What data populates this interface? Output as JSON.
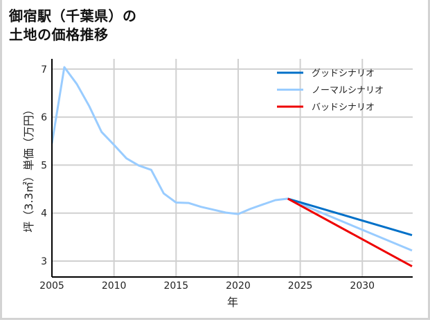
{
  "title_line1": "御宿駅（千葉県）の",
  "title_line2": "土地の価格推移",
  "chart_data": {
    "type": "line",
    "title": "御宿駅（千葉県）の土地の価格推移",
    "xlabel": "年",
    "ylabel": "坪（3.3㎡）単価（万円）",
    "xlim": [
      2005,
      2034
    ],
    "ylim": [
      2.7,
      7.25
    ],
    "xticks": [
      2005,
      2010,
      2015,
      2020,
      2025,
      2030
    ],
    "yticks": [
      3,
      4,
      5,
      6,
      7
    ],
    "grid": true,
    "legend_position": "upper right",
    "series": [
      {
        "name": "グッドシナリオ",
        "color": "#0070c8",
        "x": [
          2024,
          2034
        ],
        "values": [
          4.3,
          3.54
        ]
      },
      {
        "name": "ノーマルシナリオ",
        "color": "#99ccff",
        "x": [
          2005,
          2006,
          2007,
          2008,
          2009,
          2010,
          2011,
          2012,
          2013,
          2014,
          2015,
          2016,
          2017,
          2018,
          2019,
          2020,
          2021,
          2022,
          2023,
          2024,
          2034
        ],
        "values": [
          5.45,
          7.04,
          6.69,
          6.23,
          5.69,
          5.42,
          5.14,
          4.99,
          4.9,
          4.41,
          4.22,
          4.21,
          4.13,
          4.07,
          4.01,
          3.98,
          4.09,
          4.18,
          4.27,
          4.3,
          3.22
        ]
      },
      {
        "name": "バッドシナリオ",
        "color": "#ee0000",
        "x": [
          2024,
          2034
        ],
        "values": [
          4.3,
          2.89
        ]
      }
    ]
  }
}
